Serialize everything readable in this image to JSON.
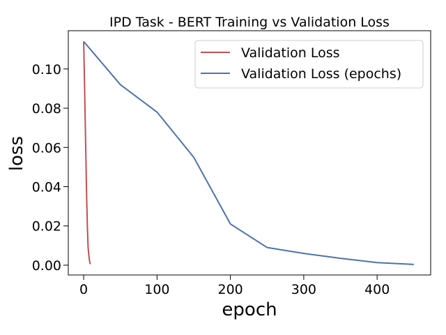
{
  "chart_data": {
    "type": "line",
    "title": "IPD Task - BERT Training vs Validation Loss",
    "xlabel": "epoch",
    "ylabel": "loss",
    "xlim": [
      -21,
      473
    ],
    "ylim": [
      -0.005,
      0.1195
    ],
    "xticks": [
      0,
      100,
      200,
      300,
      400
    ],
    "xtick_labels": [
      "0",
      "100",
      "200",
      "300",
      "400"
    ],
    "yticks": [
      0.0,
      0.02,
      0.04,
      0.06,
      0.08,
      0.1
    ],
    "ytick_labels": [
      "0.00",
      "0.02",
      "0.04",
      "0.06",
      "0.08",
      "0.10"
    ],
    "grid": false,
    "legend_position": "top-right",
    "series": [
      {
        "name": "Validation Loss",
        "color": "#c44e52",
        "x": [
          0,
          1,
          2,
          3,
          4,
          5,
          6,
          7,
          8,
          9
        ],
        "y": [
          0.114,
          0.095,
          0.075,
          0.055,
          0.035,
          0.02,
          0.009,
          0.005,
          0.002,
          0.0005
        ]
      },
      {
        "name": "Validation Loss (epochs)",
        "color": "#4c72b0",
        "x": [
          0,
          50,
          100,
          150,
          200,
          250,
          300,
          350,
          400,
          450
        ],
        "y": [
          0.114,
          0.092,
          0.078,
          0.055,
          0.021,
          0.009,
          0.006,
          0.0035,
          0.0013,
          0.0004
        ]
      }
    ]
  }
}
